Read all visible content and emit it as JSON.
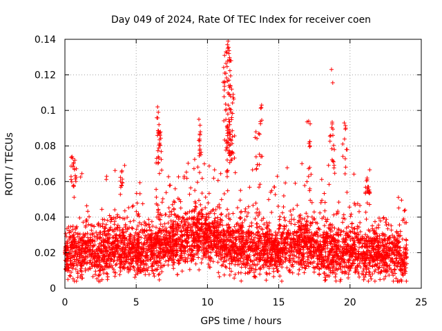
{
  "chart_data": {
    "type": "scatter",
    "title": "Day 049 of 2024, Rate Of TEC Index for receiver coen",
    "xlabel": "GPS time / hours",
    "ylabel": "ROTI / TECUs",
    "xlim": [
      0,
      25
    ],
    "ylim": [
      0,
      0.14
    ],
    "xticks": [
      {
        "value": 0,
        "label": "0"
      },
      {
        "value": 5,
        "label": "5"
      },
      {
        "value": 10,
        "label": "10"
      },
      {
        "value": 15,
        "label": "15"
      },
      {
        "value": 20,
        "label": "20"
      },
      {
        "value": 25,
        "label": "25"
      }
    ],
    "yticks": [
      {
        "value": 0,
        "label": "0"
      },
      {
        "value": 0.02,
        "label": "0.02"
      },
      {
        "value": 0.04,
        "label": "0.04"
      },
      {
        "value": 0.06,
        "label": "0.06"
      },
      {
        "value": 0.08,
        "label": "0.08"
      },
      {
        "value": 0.1,
        "label": "0.1"
      },
      {
        "value": 0.12,
        "label": "0.12"
      },
      {
        "value": 0.14,
        "label": "0.14"
      }
    ],
    "grid": true,
    "marker": "+",
    "marker_color": "#ff0000",
    "series": [
      {
        "name": "ROTI",
        "data_range": [
          0,
          24
        ],
        "baseline_profile": [
          [
            0,
            0.018
          ],
          [
            1,
            0.02
          ],
          [
            2,
            0.021
          ],
          [
            3,
            0.02
          ],
          [
            4,
            0.022
          ],
          [
            5,
            0.02
          ],
          [
            6,
            0.021
          ],
          [
            7,
            0.025
          ],
          [
            8,
            0.026
          ],
          [
            9,
            0.03
          ],
          [
            10,
            0.028
          ],
          [
            11,
            0.025
          ],
          [
            12,
            0.024
          ],
          [
            13,
            0.022
          ],
          [
            14,
            0.021
          ],
          [
            15,
            0.022
          ],
          [
            16,
            0.024
          ],
          [
            17,
            0.025
          ],
          [
            18,
            0.022
          ],
          [
            19,
            0.02
          ],
          [
            20,
            0.02
          ],
          [
            21,
            0.021
          ],
          [
            22,
            0.019
          ],
          [
            23,
            0.019
          ],
          [
            24,
            0.018
          ]
        ],
        "spikes": [
          [
            0.5,
            0.074
          ],
          [
            0.6,
            0.07
          ],
          [
            0.7,
            0.072
          ],
          [
            4.0,
            0.066
          ],
          [
            6.5,
            0.102
          ],
          [
            6.55,
            0.099
          ],
          [
            6.6,
            0.092
          ],
          [
            6.7,
            0.088
          ],
          [
            9.4,
            0.095
          ],
          [
            9.5,
            0.088
          ],
          [
            11.2,
            0.131
          ],
          [
            11.3,
            0.133
          ],
          [
            11.4,
            0.137
          ],
          [
            11.45,
            0.139
          ],
          [
            11.5,
            0.132
          ],
          [
            11.6,
            0.128
          ],
          [
            11.5,
            0.117
          ],
          [
            11.6,
            0.114
          ],
          [
            11.7,
            0.112
          ],
          [
            11.8,
            0.109
          ],
          [
            11.55,
            0.101
          ],
          [
            11.65,
            0.099
          ],
          [
            11.5,
            0.095
          ],
          [
            11.4,
            0.09
          ],
          [
            11.45,
            0.082
          ],
          [
            11.2,
            0.121
          ],
          [
            13.4,
            0.088
          ],
          [
            13.8,
            0.103
          ],
          [
            13.6,
            0.087
          ],
          [
            17.1,
            0.094
          ],
          [
            17.2,
            0.08
          ],
          [
            18.7,
            0.123
          ],
          [
            18.8,
            0.086
          ],
          [
            18.9,
            0.078
          ],
          [
            19.6,
            0.093
          ],
          [
            19.7,
            0.09
          ],
          [
            21.2,
            0.062
          ],
          [
            21.3,
            0.057
          ]
        ]
      }
    ]
  }
}
